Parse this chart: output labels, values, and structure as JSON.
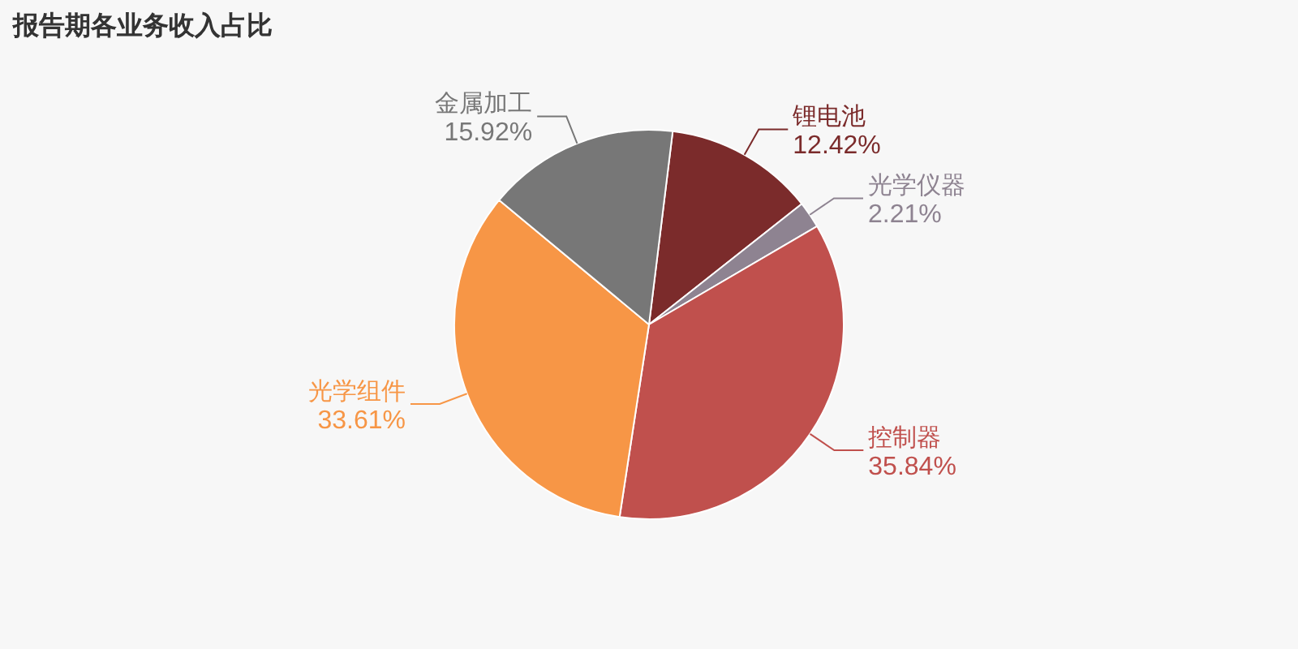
{
  "chart_data": {
    "type": "pie",
    "title": "报告期各业务收入占比",
    "categories": [
      "锂电池",
      "光学仪器",
      "控制器",
      "光学组件",
      "金属加工"
    ],
    "values": [
      12.42,
      2.21,
      35.84,
      33.61,
      15.92
    ],
    "value_labels": [
      "12.42%",
      "2.21%",
      "35.84%",
      "33.61%",
      "15.92%"
    ],
    "colors": [
      "#7b2b2b",
      "#8e8391",
      "#c0504d",
      "#f79646",
      "#777777"
    ]
  }
}
